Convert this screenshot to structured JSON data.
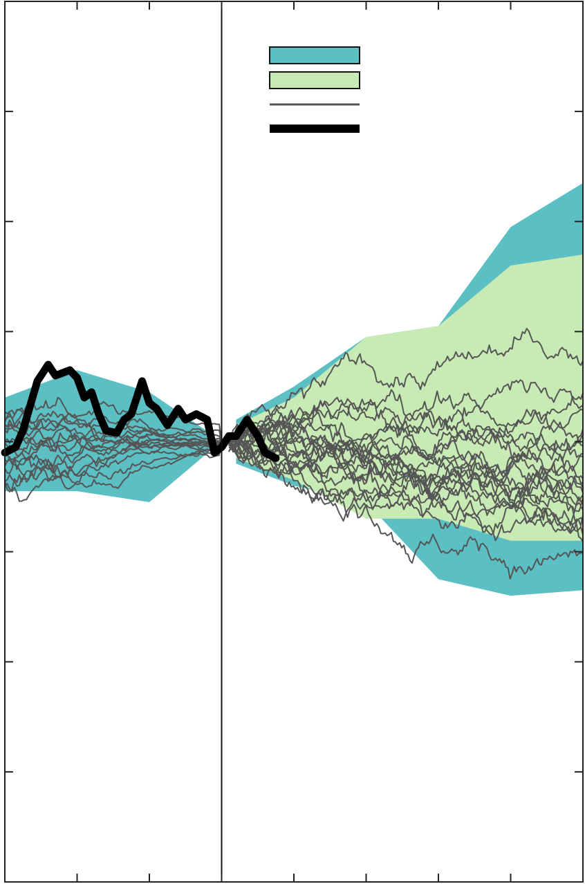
{
  "chart_data": {
    "type": "line",
    "title": "",
    "xlabel": "",
    "ylabel": "",
    "xlim": [
      -3,
      5
    ],
    "ylim": [
      -4,
      4
    ],
    "grid": false,
    "divider_x": 0,
    "legend": {
      "placement": "top-center",
      "entries": [
        {
          "kind": "band",
          "label": "",
          "color": "#5bbfc3"
        },
        {
          "kind": "band",
          "label": "",
          "color": "#c8eab4"
        },
        {
          "kind": "line",
          "label": "",
          "color": "#555555"
        },
        {
          "kind": "thick-line",
          "label": "",
          "color": "#000000"
        }
      ]
    },
    "band_outer": {
      "color": "#5bbfc3",
      "left": {
        "x": [
          -3,
          -2,
          -1,
          -0.1
        ],
        "upper": [
          0.4,
          0.65,
          0.45,
          0.05
        ],
        "lower": [
          -0.45,
          -0.45,
          -0.55,
          -0.05
        ]
      },
      "right": {
        "x": [
          0.2,
          1,
          2,
          3,
          4,
          5
        ],
        "upper": [
          0.2,
          0.5,
          0.95,
          1.05,
          1.95,
          2.35
        ],
        "lower": [
          -0.2,
          -0.4,
          -0.55,
          -1.25,
          -1.4,
          -1.35
        ]
      }
    },
    "band_inner": {
      "color": "#c8eab4",
      "x": [
        0.2,
        1,
        2,
        3,
        4,
        5
      ],
      "upper": [
        0.15,
        0.4,
        0.95,
        1.05,
        1.6,
        1.7
      ],
      "lower": [
        -0.15,
        -0.35,
        -0.7,
        -0.7,
        -0.9,
        -0.9
      ]
    },
    "simulated_paths": {
      "color": "#555555",
      "left_count": 16,
      "right_count": 22,
      "x_start": -3,
      "x_end": 5
    },
    "observed_path": {
      "color": "#000000",
      "x": [
        -3,
        -2.85,
        -2.75,
        -2.55,
        -2.4,
        -2.3,
        -2.1,
        -2,
        -1.9,
        -1.8,
        -1.7,
        -1.6,
        -1.45,
        -1.35,
        -1.25,
        -1.1,
        -1,
        -0.9,
        -0.75,
        -0.6,
        -0.5,
        -0.35,
        -0.2,
        -0.1,
        0,
        0.1,
        0.2,
        0.35,
        0.5,
        0.6,
        0.75
      ],
      "y": [
        -0.1,
        -0.05,
        0.1,
        0.55,
        0.7,
        0.6,
        0.65,
        0.58,
        0.4,
        0.45,
        0.25,
        0.1,
        0.08,
        0.2,
        0.25,
        0.55,
        0.35,
        0.3,
        0.15,
        0.3,
        0.2,
        0.25,
        0.2,
        -0.1,
        -0.05,
        0.05,
        0.05,
        0.2,
        0.05,
        -0.1,
        -0.15
      ]
    }
  }
}
